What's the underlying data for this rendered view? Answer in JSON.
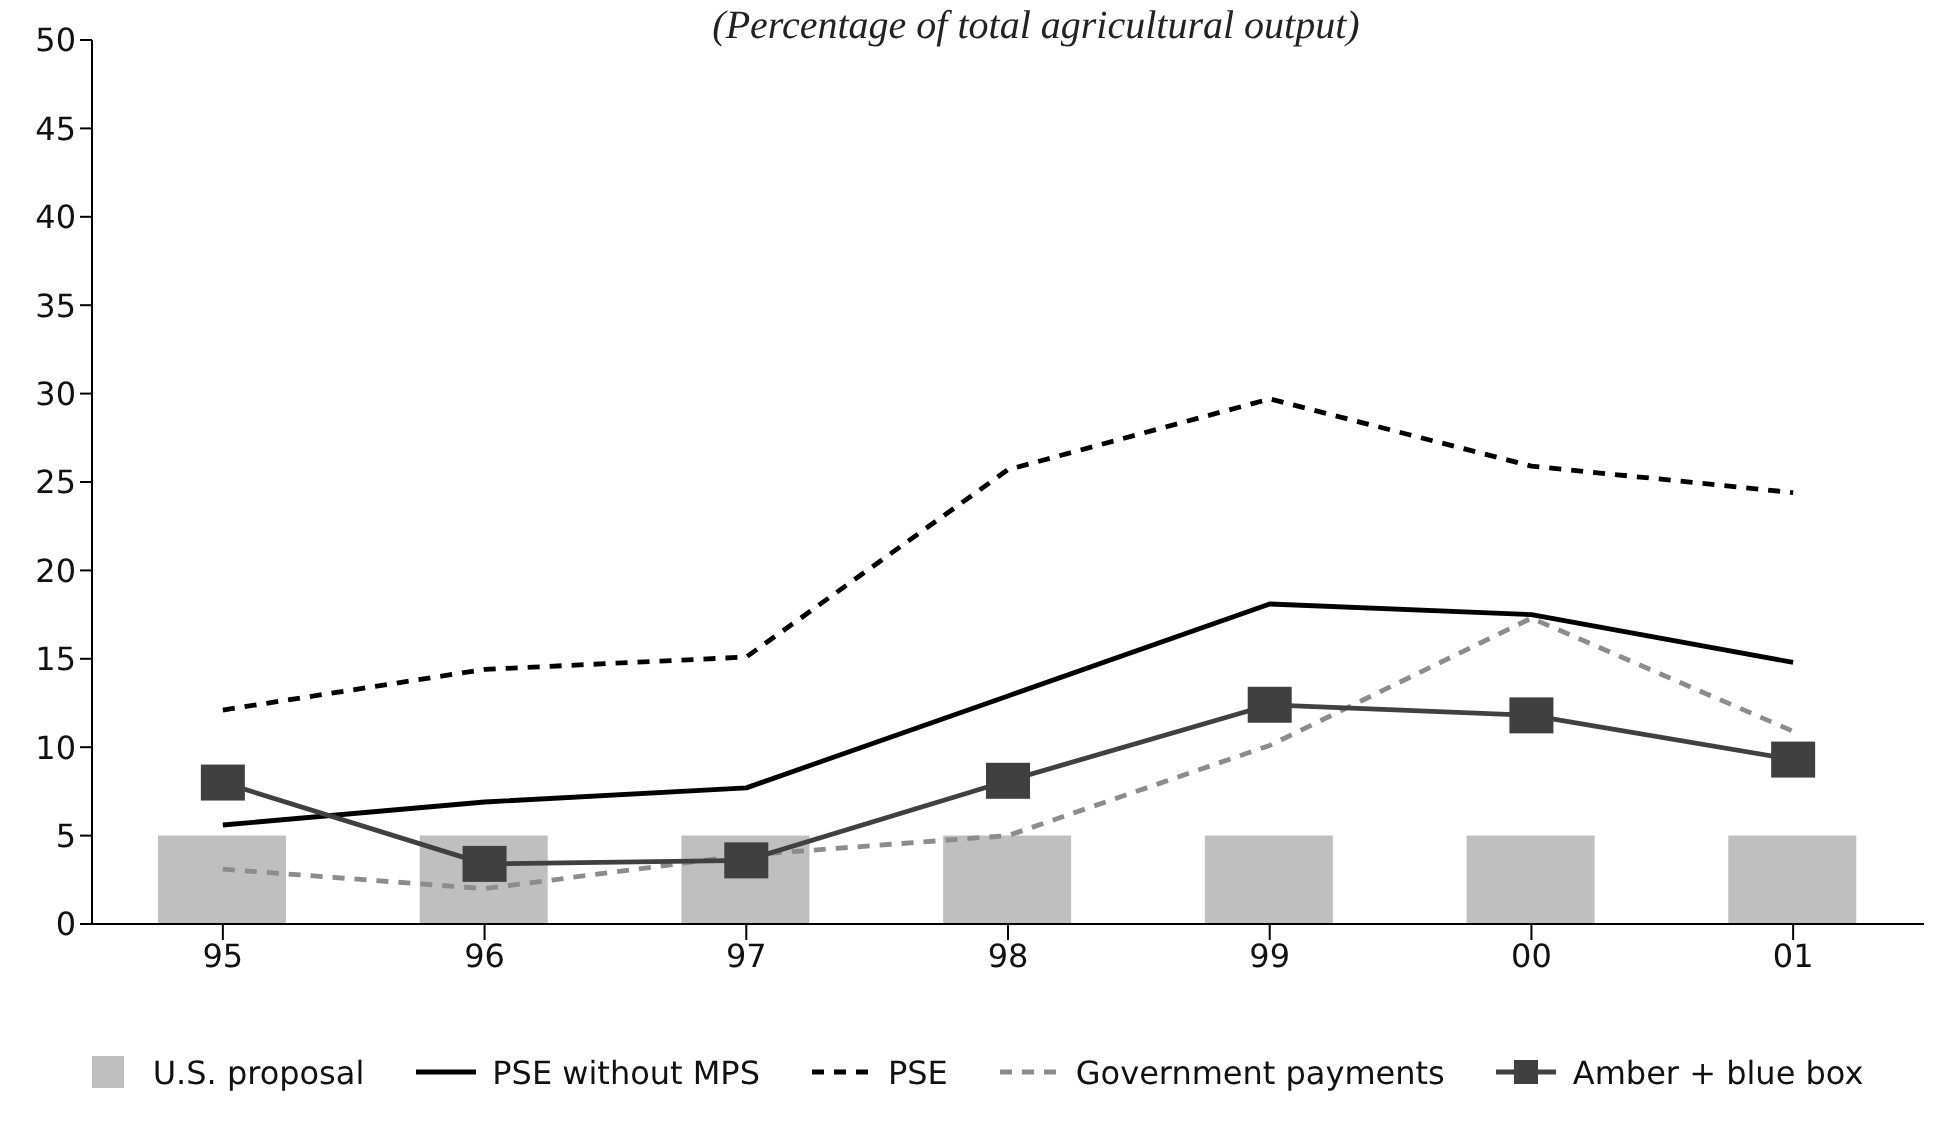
{
  "chart_data": {
    "type": "line",
    "subtitle": "(Percentage of total agricultural output)",
    "categories": [
      "95",
      "96",
      "97",
      "98",
      "99",
      "00",
      "01"
    ],
    "series": [
      {
        "name": "U.S. proposal",
        "type": "bar",
        "color": "#bfbfbf",
        "values": [
          5,
          5,
          5,
          5,
          5,
          5,
          5
        ]
      },
      {
        "name": "PSE without MPS",
        "color": "#000000",
        "line_style": "solid",
        "marker": "none",
        "values": [
          5.6,
          6.9,
          7.7,
          12.9,
          18.1,
          17.5,
          14.8
        ]
      },
      {
        "name": "PSE",
        "color": "#000000",
        "line_style": "dashed",
        "marker": "none",
        "values": [
          12.1,
          14.4,
          15.1,
          25.7,
          29.7,
          25.9,
          24.4
        ]
      },
      {
        "name": "Government payments",
        "color": "#8c8c8c",
        "line_style": "dashed",
        "marker": "none",
        "values": [
          3.1,
          2.0,
          3.9,
          5.0,
          10.1,
          17.3,
          10.9
        ]
      },
      {
        "name": "Amber + blue box",
        "color": "#404040",
        "line_style": "solid",
        "marker": "square",
        "values": [
          8.0,
          3.4,
          3.6,
          8.1,
          12.4,
          11.8,
          9.3
        ]
      }
    ],
    "ylim": [
      0,
      50
    ],
    "yticks": [
      0,
      5,
      10,
      15,
      20,
      25,
      30,
      35,
      40,
      45,
      50
    ],
    "grid": false,
    "legend": "bottom"
  }
}
